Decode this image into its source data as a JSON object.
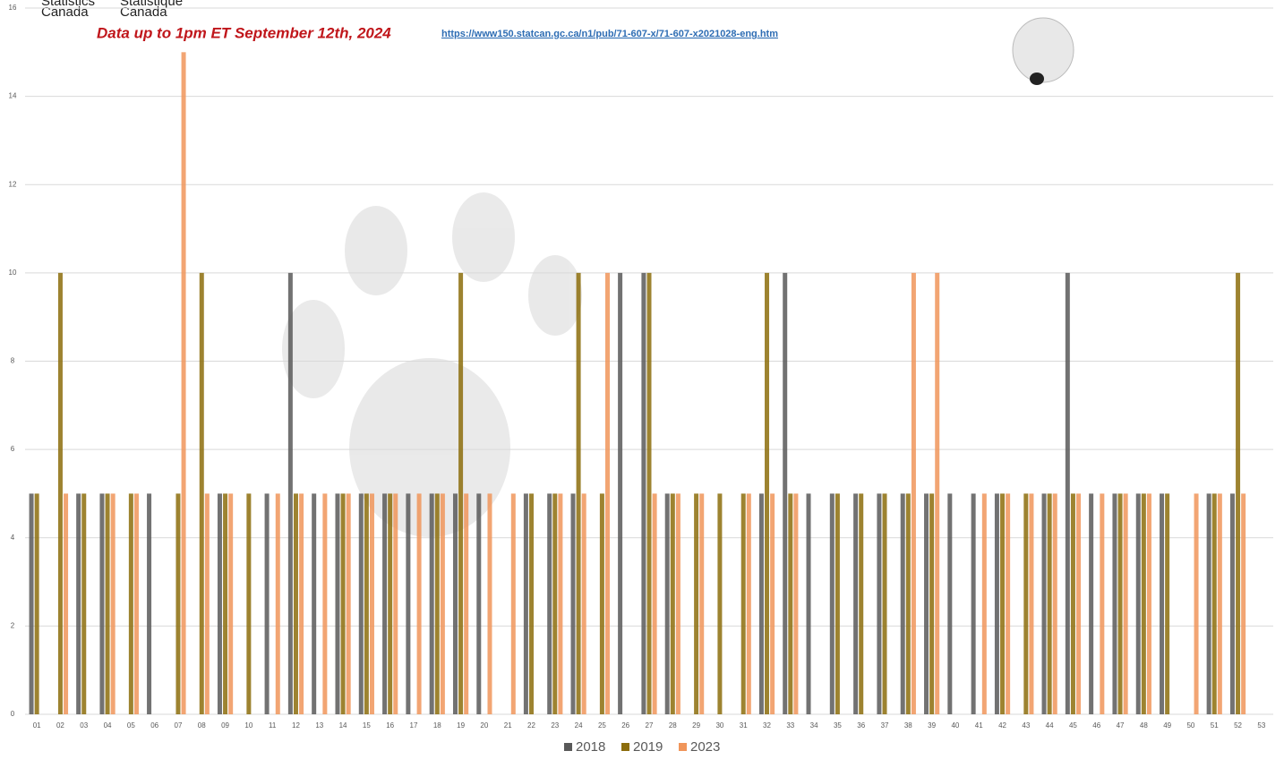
{
  "chart_data": {
    "type": "bar",
    "agency_en": [
      "Statistics",
      "Canada"
    ],
    "agency_fr": [
      "Statistique",
      "Canada"
    ],
    "subtitle": "Data up to 1pm ET September 12th, 2024",
    "source_url": "https://www150.statcan.gc.ca/n1/pub/71-607-x/71-607-x2021028-eng.htm",
    "categories": [
      "01",
      "02",
      "03",
      "04",
      "05",
      "06",
      "07",
      "08",
      "09",
      "10",
      "11",
      "12",
      "13",
      "14",
      "15",
      "16",
      "17",
      "18",
      "19",
      "20",
      "21",
      "22",
      "23",
      "24",
      "25",
      "26",
      "27",
      "28",
      "29",
      "30",
      "31",
      "32",
      "33",
      "34",
      "35",
      "36",
      "37",
      "38",
      "39",
      "40",
      "41",
      "42",
      "43",
      "44",
      "45",
      "46",
      "47",
      "48",
      "49",
      "50",
      "51",
      "52",
      "53"
    ],
    "series": [
      {
        "name": "2018",
        "color": "#595959",
        "values": [
          5,
          0,
          5,
          5,
          0,
          5,
          0,
          0,
          5,
          0,
          5,
          10,
          5,
          5,
          5,
          5,
          5,
          5,
          5,
          5,
          0,
          5,
          5,
          5,
          0,
          10,
          10,
          5,
          0,
          0,
          0,
          5,
          10,
          5,
          5,
          5,
          5,
          5,
          5,
          5,
          5,
          5,
          0,
          5,
          10,
          5,
          5,
          5,
          5,
          0,
          5,
          5,
          0
        ]
      },
      {
        "name": "2019",
        "color": "#8c6d0c",
        "values": [
          5,
          10,
          5,
          5,
          5,
          0,
          5,
          10,
          5,
          5,
          0,
          5,
          0,
          5,
          5,
          5,
          0,
          5,
          10,
          0,
          0,
          5,
          5,
          10,
          5,
          0,
          10,
          5,
          5,
          5,
          5,
          10,
          5,
          0,
          5,
          5,
          5,
          5,
          5,
          0,
          0,
          5,
          5,
          5,
          5,
          0,
          5,
          5,
          5,
          0,
          5,
          10,
          0
        ]
      },
      {
        "name": "2023",
        "color": "#f0955a",
        "values": [
          0,
          5,
          0,
          5,
          5,
          0,
          15,
          5,
          5,
          0,
          5,
          5,
          5,
          5,
          5,
          5,
          5,
          5,
          5,
          5,
          5,
          0,
          5,
          5,
          10,
          0,
          5,
          5,
          5,
          0,
          5,
          5,
          5,
          0,
          0,
          0,
          0,
          10,
          10,
          0,
          5,
          5,
          5,
          5,
          5,
          5,
          5,
          5,
          0,
          5,
          5,
          5,
          0
        ]
      }
    ],
    "ylim": [
      0,
      16
    ],
    "yticks": [
      0,
      2,
      4,
      6,
      8,
      10,
      12,
      14,
      16
    ],
    "grid": true
  }
}
